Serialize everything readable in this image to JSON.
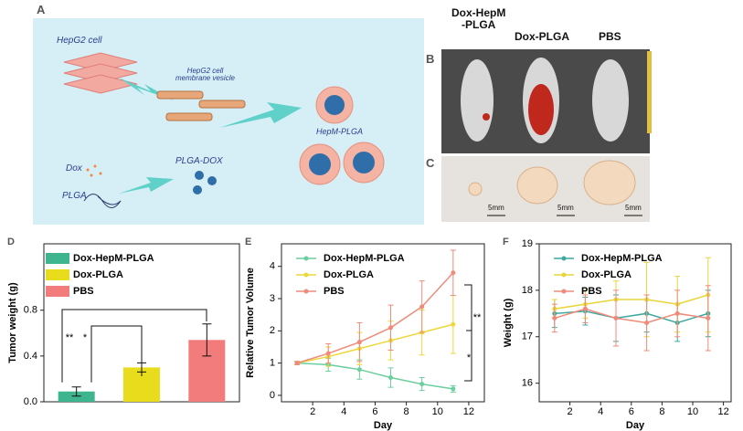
{
  "panel_a": {
    "label": "A",
    "hepg2_cell": "HepG2 cell",
    "vesicle": "HepG2 cell\nmembrane vesicle",
    "hepm_plga": "HepM-PLGA",
    "dox": "Dox",
    "plga_dox": "PLGA-DOX",
    "plga": "PLGA"
  },
  "panel_b": {
    "label": "B",
    "columns": [
      "Dox-HepM\n-PLGA",
      "Dox-PLGA",
      "PBS"
    ]
  },
  "panel_c": {
    "label": "C",
    "scale_bars": [
      "5mm",
      "5mm",
      "5mm"
    ]
  },
  "chart_data": [
    {
      "type": "bar",
      "panel_label": "D",
      "ylabel": "Tumor weight (g)",
      "categories": [
        null
      ],
      "ylim": [
        0,
        1.38
      ],
      "yticks": [
        {
          "value": 0,
          "label": "0.0"
        },
        0.4,
        0.8
      ],
      "series": [
        {
          "name": "Dox-HepM-PLGA",
          "color": "#3fb58f",
          "values": [
            0.09
          ],
          "errors": [
            0.04
          ]
        },
        {
          "name": "Dox-PLGA",
          "color": "#e8dc1c",
          "values": [
            0.3
          ],
          "errors": [
            0.04
          ]
        },
        {
          "name": "PBS",
          "color": "#f27b7b",
          "values": [
            0.54
          ],
          "errors": [
            0.14
          ]
        }
      ],
      "annotations": [
        "**",
        "*"
      ]
    },
    {
      "type": "line",
      "panel_label": "E",
      "xlabel": "Day",
      "ylabel": "Relative Tumor Volume",
      "x": [
        1,
        3,
        5,
        7,
        9,
        11
      ],
      "xlim": [
        0,
        13
      ],
      "xticks": [
        2,
        4,
        6,
        8,
        10,
        12
      ],
      "ylim": [
        -0.2,
        4.7
      ],
      "yticks": [
        0,
        1,
        2,
        3,
        4
      ],
      "series": [
        {
          "name": "Dox-HepM-PLGA",
          "color": "#6ccf9f",
          "values": [
            1,
            0.95,
            0.8,
            0.55,
            0.35,
            0.2
          ],
          "errors": [
            0.05,
            0.2,
            0.3,
            0.3,
            0.2,
            0.1
          ]
        },
        {
          "name": "Dox-PLGA",
          "color": "#ecd83a",
          "values": [
            1,
            1.2,
            1.45,
            1.7,
            1.95,
            2.2
          ],
          "errors": [
            0.05,
            0.3,
            0.5,
            0.6,
            0.7,
            0.9
          ]
        },
        {
          "name": "PBS",
          "color": "#f08a7a",
          "values": [
            1,
            1.3,
            1.65,
            2.1,
            2.75,
            3.8
          ],
          "errors": [
            0.05,
            0.3,
            0.6,
            0.7,
            0.8,
            0.7
          ]
        }
      ],
      "annotations": [
        "**",
        "*"
      ]
    },
    {
      "type": "line",
      "panel_label": "F",
      "xlabel": "Day",
      "ylabel": "Weight (g)",
      "x": [
        1,
        3,
        5,
        7,
        9,
        11
      ],
      "xlim": [
        0,
        12.5
      ],
      "xticks": [
        2,
        4,
        6,
        8,
        10,
        12
      ],
      "ylim": [
        15.6,
        19
      ],
      "yticks": [
        16,
        17,
        18,
        19
      ],
      "series": [
        {
          "name": "Dox-HepM-PLGA",
          "color": "#3fa9a0",
          "values": [
            17.5,
            17.55,
            17.4,
            17.5,
            17.3,
            17.5
          ],
          "errors": [
            0.3,
            0.3,
            0.5,
            0.4,
            0.4,
            0.5
          ]
        },
        {
          "name": "Dox-PLGA",
          "color": "#e8d53a",
          "values": [
            17.6,
            17.7,
            17.8,
            17.8,
            17.7,
            17.9
          ],
          "errors": [
            0.2,
            0.3,
            0.4,
            0.8,
            0.6,
            0.8
          ]
        },
        {
          "name": "PBS",
          "color": "#f08a7a",
          "values": [
            17.4,
            17.6,
            17.4,
            17.3,
            17.5,
            17.4
          ],
          "errors": [
            0.3,
            0.3,
            0.6,
            0.6,
            0.5,
            0.7
          ]
        }
      ],
      "annotations": []
    }
  ]
}
